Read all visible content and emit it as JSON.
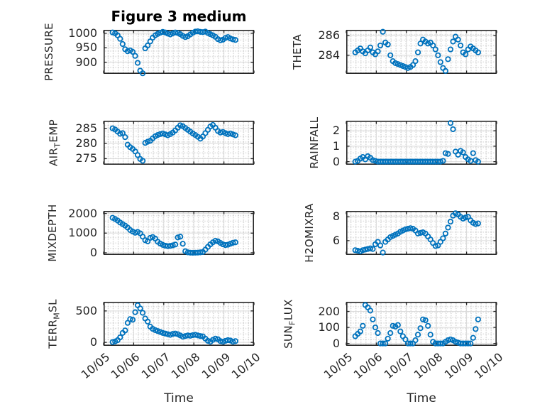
{
  "title": "Figure 3 medium",
  "colors": {
    "marker": "#0072BD",
    "axis": "#262626",
    "grid_major": "#dbdbdb",
    "title_color": "#000000"
  },
  "x_axis": {
    "label": "Time",
    "range": [
      0,
      5
    ],
    "ticks": [
      0,
      1,
      2,
      3,
      4,
      5
    ],
    "tick_labels": [
      "10/05",
      "10/06",
      "10/07",
      "10/08",
      "10/09",
      "10/10"
    ],
    "values": [
      0.3,
      0.383,
      0.467,
      0.55,
      0.633,
      0.717,
      0.8,
      0.883,
      0.967,
      1.05,
      1.133,
      1.217,
      1.3,
      1.383,
      1.467,
      1.55,
      1.633,
      1.717,
      1.8,
      1.883,
      1.967,
      2.05,
      2.133,
      2.217,
      2.3,
      2.383,
      2.467,
      2.55,
      2.633,
      2.717,
      2.8,
      2.883,
      2.967,
      3.05,
      3.133,
      3.217,
      3.3,
      3.383,
      3.467,
      3.55,
      3.633,
      3.717,
      3.8,
      3.883,
      3.967,
      4.05,
      4.133,
      4.217,
      4.3,
      4.383
    ]
  },
  "chart_data": [
    {
      "id": "pressure",
      "type": "scatter",
      "ylabel": "PRESSURE",
      "ylabel_parts": [
        [
          "PRESSURE",
          false
        ]
      ],
      "yticks": [
        900,
        950,
        1000
      ],
      "ylim": [
        860,
        1012
      ],
      "grid": true,
      "marker": "o",
      "values": [
        1003,
        1000,
        993,
        981,
        963,
        945,
        938,
        941,
        936,
        922,
        898,
        871,
        862,
        948,
        958,
        972,
        985,
        993,
        998,
        1002,
        1005,
        1003,
        999,
        996,
        1000,
        1003,
        1001,
        997,
        991,
        987,
        990,
        996,
        1002,
        1006,
        1007,
        1005,
        1004,
        1006,
        1001,
        997,
        993,
        988,
        980,
        976,
        978,
        984,
        987,
        982,
        979,
        977
      ]
    },
    {
      "id": "theta",
      "type": "scatter",
      "ylabel": "THETA",
      "ylabel_parts": [
        [
          "THETA",
          false
        ]
      ],
      "yticks": [
        284,
        286
      ],
      "ylim": [
        282.1,
        286.6
      ],
      "grid": true,
      "marker": "o",
      "values": [
        284.3,
        284.5,
        284.7,
        284.4,
        284.2,
        284.5,
        284.8,
        284.3,
        284.1,
        284.4,
        285.0,
        286.4,
        285.3,
        285.1,
        284.0,
        283.4,
        283.2,
        283.1,
        283.0,
        282.9,
        282.8,
        282.7,
        282.8,
        283.0,
        283.4,
        284.3,
        285.2,
        285.6,
        285.4,
        285.2,
        285.3,
        285.0,
        284.6,
        284.0,
        283.3,
        282.7,
        282.4,
        283.6,
        284.6,
        285.4,
        285.9,
        285.6,
        285.0,
        284.3,
        284.1,
        284.6,
        284.9,
        284.7,
        284.5,
        284.3
      ]
    },
    {
      "id": "air_temp",
      "type": "scatter",
      "ylabel": "AIR_TEMP",
      "ylabel_parts": [
        [
          "AIR",
          false
        ],
        [
          "T",
          true
        ],
        [
          "EMP",
          false
        ]
      ],
      "yticks": [
        275,
        280,
        285
      ],
      "ylim": [
        273,
        287.5
      ],
      "grid": true,
      "marker": "o",
      "values": [
        285,
        284.6,
        283.9,
        283.2,
        283.4,
        282.1,
        279.6,
        278.8,
        278.2,
        277.4,
        276.2,
        274.9,
        274.3,
        280.2,
        280.6,
        280.9,
        281.7,
        282.4,
        282.8,
        283.1,
        283.3,
        283.0,
        282.7,
        283.1,
        283.6,
        284.3,
        285.2,
        286.0,
        285.7,
        285.1,
        284.5,
        283.9,
        283.3,
        282.8,
        282.2,
        281.6,
        282.3,
        283.4,
        284.5,
        285.6,
        286.1,
        285.2,
        284.1,
        283.6,
        283.8,
        283.4,
        283.1,
        283.3,
        283.0,
        282.7
      ]
    },
    {
      "id": "rainfall",
      "type": "scatter",
      "ylabel": "RAINFALL",
      "ylabel_parts": [
        [
          "RAINFALL",
          false
        ]
      ],
      "yticks": [
        0,
        1,
        2
      ],
      "ylim": [
        -0.2,
        2.65
      ],
      "grid": true,
      "marker": "o",
      "values": [
        0,
        0.05,
        0.2,
        0.3,
        0.15,
        0.35,
        0.25,
        0.1,
        0.05,
        0,
        0,
        0,
        0,
        0,
        0,
        0,
        0,
        0,
        0,
        0,
        0,
        0,
        0,
        0,
        0,
        0,
        0,
        0,
        0,
        0,
        0,
        0,
        0,
        0,
        0,
        0.05,
        0.55,
        0.5,
        2.5,
        2.1,
        0.65,
        0.45,
        0.7,
        0.6,
        0.3,
        0.15,
        0.05,
        0.55,
        0.1,
        0
      ]
    },
    {
      "id": "mixdepth",
      "type": "scatter",
      "ylabel": "MIXDEPTH",
      "ylabel_parts": [
        [
          "MIXDEPTH",
          false
        ]
      ],
      "yticks": [
        0,
        1000,
        2000
      ],
      "ylim": [
        -110,
        2130
      ],
      "grid": true,
      "marker": "o",
      "values": [
        1780,
        1720,
        1640,
        1540,
        1460,
        1380,
        1280,
        1160,
        1080,
        1020,
        1060,
        990,
        820,
        640,
        580,
        760,
        800,
        720,
        560,
        470,
        400,
        360,
        340,
        350,
        380,
        420,
        780,
        820,
        460,
        80,
        20,
        5,
        0,
        5,
        10,
        20,
        40,
        160,
        300,
        430,
        530,
        610,
        580,
        500,
        430,
        390,
        410,
        460,
        510,
        530
      ]
    },
    {
      "id": "h2omixra",
      "type": "scatter",
      "ylabel": "H2OMIXRA",
      "ylabel_parts": [
        [
          "H2OMIXRA",
          false
        ]
      ],
      "yticks": [
        6,
        8
      ],
      "ylim": [
        4.8,
        8.5
      ],
      "grid": true,
      "marker": "o",
      "values": [
        5.2,
        5.15,
        5.1,
        5.2,
        5.25,
        5.3,
        5.35,
        5.3,
        5.7,
        5.9,
        5.6,
        5.0,
        5.9,
        6.1,
        6.3,
        6.4,
        6.5,
        6.6,
        6.75,
        6.85,
        6.95,
        7.0,
        7.05,
        7.0,
        6.85,
        6.6,
        6.65,
        6.7,
        6.6,
        6.35,
        6.1,
        5.8,
        5.55,
        5.6,
        5.9,
        6.2,
        6.6,
        7.1,
        7.6,
        8.1,
        8.3,
        8.2,
        8.0,
        7.85,
        7.95,
        8.0,
        7.7,
        7.5,
        7.4,
        7.45
      ]
    },
    {
      "id": "terr_msl",
      "type": "scatter",
      "ylabel": "TERR_MSL",
      "ylabel_parts": [
        [
          "TERR",
          false
        ],
        [
          "M",
          true
        ],
        [
          "SL",
          false
        ]
      ],
      "yticks": [
        0,
        500
      ],
      "ylim": [
        -55,
        645
      ],
      "grid": true,
      "marker": "o",
      "values": [
        5,
        15,
        35,
        80,
        150,
        190,
        310,
        370,
        360,
        480,
        590,
        540,
        470,
        380,
        330,
        250,
        215,
        195,
        180,
        165,
        150,
        140,
        130,
        120,
        135,
        140,
        130,
        110,
        90,
        100,
        110,
        105,
        115,
        120,
        110,
        100,
        95,
        60,
        25,
        10,
        40,
        60,
        50,
        20,
        10,
        25,
        35,
        30,
        10,
        20
      ]
    },
    {
      "id": "sun_flux",
      "type": "scatter",
      "ylabel": "SUN_FLUX",
      "ylabel_parts": [
        [
          "SUN",
          false
        ],
        [
          "F",
          true
        ],
        [
          "LUX",
          false
        ]
      ],
      "yticks": [
        0,
        100,
        200
      ],
      "ylim": [
        -15,
        260
      ],
      "grid": true,
      "marker": "o",
      "values": [
        45,
        60,
        75,
        110,
        240,
        225,
        205,
        150,
        100,
        65,
        0,
        0,
        0,
        30,
        65,
        110,
        105,
        115,
        75,
        45,
        25,
        0,
        0,
        0,
        20,
        55,
        95,
        150,
        145,
        110,
        55,
        10,
        0,
        0,
        0,
        0,
        10,
        20,
        25,
        20,
        10,
        5,
        0,
        0,
        0,
        0,
        0,
        35,
        90,
        150
      ]
    }
  ]
}
